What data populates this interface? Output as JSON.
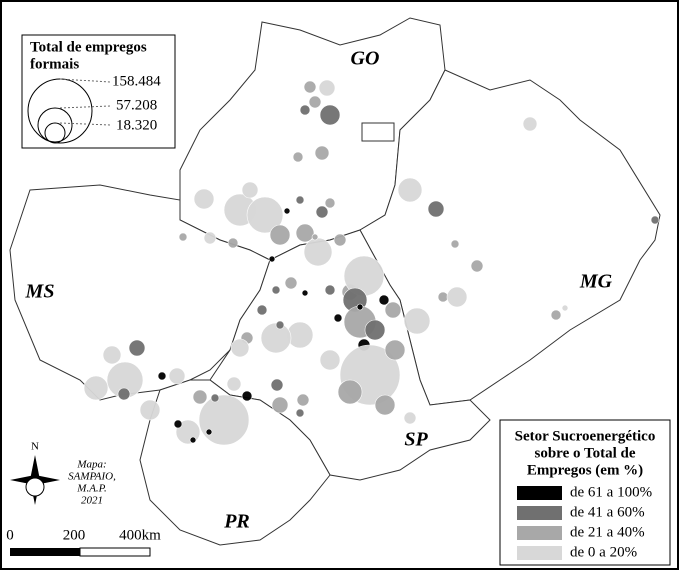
{
  "legend_size": {
    "title_lines": [
      "Total de empregos",
      "formais"
    ],
    "values": [
      "158.484",
      "57.208",
      "18.320"
    ]
  },
  "regions": [
    "GO",
    "MS",
    "MG",
    "SP",
    "PR"
  ],
  "legend_class": {
    "title_lines": [
      "Setor Sucroenergético",
      "sobre o Total de",
      "Empregos (em %)"
    ],
    "classes": [
      {
        "label": "de 61 a 100%",
        "color": "#000000"
      },
      {
        "label": "de 41 a 60%",
        "color": "#707070"
      },
      {
        "label": "de 21 a 40%",
        "color": "#a8a8a8"
      },
      {
        "label": "de 0 a 20%",
        "color": "#d8d8d8"
      }
    ]
  },
  "compass": "N",
  "credit": [
    "Mapa:",
    "SAMPAIO,",
    "M.A.P.",
    "2021"
  ],
  "scale": [
    "0",
    "200",
    "400km"
  ]
}
